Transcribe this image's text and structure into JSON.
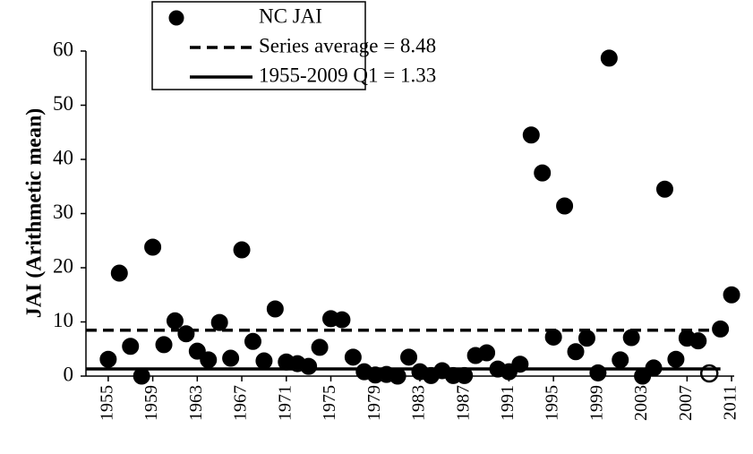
{
  "chart_data": {
    "type": "scatter",
    "y_label": "JAI (Arithmetic mean)",
    "xlim": [
      1953,
      2012
    ],
    "ylim": [
      0,
      60
    ],
    "xticks": [
      1955,
      1959,
      1963,
      1967,
      1971,
      1975,
      1979,
      1983,
      1987,
      1991,
      1995,
      1999,
      2003,
      2007,
      2011
    ],
    "yticks": [
      0,
      10,
      20,
      30,
      40,
      50,
      60
    ],
    "series": [
      {
        "name": "NC JAI",
        "color": "#000000",
        "fill": "#000000",
        "x": [
          1955,
          1956,
          1957,
          1958,
          1959,
          1960,
          1961,
          1962,
          1963,
          1964,
          1965,
          1966,
          1967,
          1968,
          1969,
          1970,
          1971,
          1972,
          1973,
          1974,
          1975,
          1976,
          1977,
          1978,
          1979,
          1980,
          1981,
          1982,
          1983,
          1984,
          1985,
          1986,
          1987,
          1988,
          1989,
          1990,
          1991,
          1992,
          1993,
          1994,
          1995,
          1996,
          1997,
          1998,
          1999,
          2000,
          2001,
          2002,
          2003,
          2004,
          2005,
          2006,
          2007,
          2008,
          2010,
          2011
        ],
        "values": [
          3.1,
          19,
          5.5,
          0,
          23.8,
          5.8,
          10.2,
          7.8,
          4.6,
          3,
          9.9,
          3.3,
          23.3,
          6.4,
          2.8,
          12.4,
          2.6,
          2.3,
          1.8,
          5.3,
          10.6,
          10.4,
          3.5,
          0.8,
          0.2,
          0.3,
          0,
          3.5,
          0.8,
          0.1,
          1,
          0.1,
          0.1,
          3.8,
          4.3,
          1.3,
          0.8,
          2.2,
          44.5,
          37.5,
          7.2,
          31.4,
          4.5,
          7,
          0.6,
          58.7,
          3,
          7.1,
          0,
          1.5,
          34.5,
          3.1,
          7,
          6.5,
          8.7,
          15
        ]
      },
      {
        "color": "#000000",
        "fill": "none",
        "x": [
          2009
        ],
        "values": [
          0.5
        ]
      }
    ],
    "reference_lines": [
      {
        "name": "Series average = 8.48",
        "value": 8.48,
        "style": "dashed",
        "color": "#000000",
        "x": [
          1953,
          2011
        ]
      },
      {
        "name": "1955-2009 Q1 = 1.33",
        "value": 1.33,
        "style": "solid",
        "color": "#000000",
        "x": [
          1953,
          2010
        ]
      }
    ]
  }
}
